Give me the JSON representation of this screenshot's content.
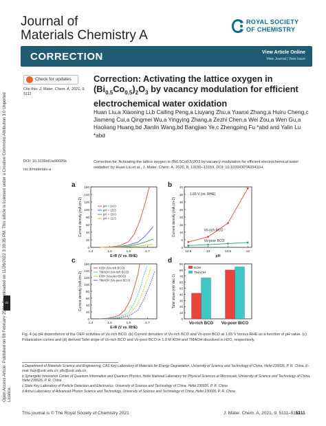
{
  "header": {
    "journal_line1": "Journal of",
    "journal_line2": "Materials Chemistry A",
    "publisher_line1": "ROYAL SOCIETY",
    "publisher_line2": "OF CHEMISTRY"
  },
  "banner": {
    "label": "CORRECTION",
    "view_online": "View Article Online",
    "sub_links": "View Journal | View Issue"
  },
  "side_note": {
    "text": "Open Access Article. Published on 08 February 2021. Downloaded on 11/26/2022 3:39:35 PM. This article is licensed under a Creative Commons Attribution 3.0 Unported Licence.",
    "badge": "cc BY"
  },
  "left_column": {
    "check_updates": "Check for updates",
    "cite_label": "Cite this:",
    "cite_text": "J. Mater. Chem. A, 2021, 9, 5111",
    "doi": "DOI: 10.1039/d1ta90025k",
    "rsc_link": "rsc.li/materials-a"
  },
  "article": {
    "title": "Correction: Activating the lattice oxygen in (Bi0.5Co0.5)2O3 by vacancy modulation for efficient electrochemical water oxidation",
    "title_line1": "Correction: Activating the lattice oxygen in",
    "title_line2_a": "(Bi",
    "title_sub1": "0.5",
    "title_line2_b": "Co",
    "title_sub2": "0.5",
    "title_line2_c": ")",
    "title_sub3": "2",
    "title_line2_d": "O",
    "title_sub4": "3",
    "title_line2_e": " by vacancy modulation for efficient",
    "title_line3": "electrochemical water oxidation",
    "authors": "Huan Liu,a Xiaoning Li,b Cailing Peng,a Liuyang Zhu,a Yuanxi Zhang,a Huiru Cheng,c Jiameng Cui,a Qingmei Wu,a Yingying Zhang,a Zezhi Chen,a Wei Zou,a Wen Gu,a Haoliang Huang,bd Jianlin Wang,bd Bangjiao Ye,c Zhengping Fu *abd and Yalin Lu *abd",
    "abstract": "Correction for 'Activating the lattice oxygen in (Bi0.5Co0.5)2O3 by vacancy modulation for efficient electrochemical water oxidation' by Huan Liu et al., J. Mater. Chem. A, 2020, 8, 13150–13159, DOI: 10.1039/D0TA03411H."
  },
  "figure": {
    "caption": "Fig. 4  (a) pH dependence of the OER activities of Vo-rich BCO. (b) Current densities of Vo-rich BCO and Vo-poor BCO at 1.65 V versus RHE as a function of pH value. (c) Polarization curves and (d) derived Tafel slope of Vo-rich BCO and Vo-poor BCO in 1.0 M KOH and TMAOH dissolved in H2O, respectively.",
    "panel_labels": [
      "a",
      "b",
      "c",
      "d"
    ],
    "colors": {
      "red": "#e8443a",
      "blue": "#3a6fd8",
      "green": "#2aa86a",
      "yellow": "#d9c231",
      "cyan": "#3ec7c7",
      "magenta": "#d94ad1"
    }
  },
  "chart_data": [
    {
      "panel": "a",
      "type": "line",
      "xlabel": "E-iR (V vs. RHE)",
      "ylabel": "Current density (mA cm-2)",
      "xlim": [
        1.4,
        1.75
      ],
      "ylim": [
        0,
        160
      ],
      "xticks": [
        "1.4",
        "1.5",
        "1.6",
        "1.7"
      ],
      "yticks": [
        "0",
        "20",
        "40",
        "60",
        "80",
        "100",
        "120",
        "140",
        "160"
      ],
      "legend": [
        "pH = 14.0",
        "pH = 13.5",
        "pH = 13.0",
        "pH = 12.5"
      ],
      "series": [
        {
          "name": "pH = 14.0",
          "x": [
            1.45,
            1.5,
            1.55,
            1.6,
            1.63,
            1.66,
            1.69,
            1.71
          ],
          "y": [
            0,
            1,
            4,
            15,
            35,
            70,
            120,
            160
          ]
        },
        {
          "name": "pH = 13.5",
          "x": [
            1.45,
            1.5,
            1.55,
            1.6,
            1.65,
            1.68,
            1.71,
            1.73
          ],
          "y": [
            0,
            0.5,
            2,
            6,
            14,
            26,
            42,
            55
          ]
        },
        {
          "name": "pH = 13.0",
          "x": [
            1.45,
            1.5,
            1.55,
            1.6,
            1.65,
            1.7,
            1.73
          ],
          "y": [
            0,
            0.3,
            1,
            3,
            8,
            16,
            22
          ]
        },
        {
          "name": "pH = 12.5",
          "x": [
            1.45,
            1.5,
            1.55,
            1.6,
            1.65,
            1.7,
            1.73
          ],
          "y": [
            0,
            0.2,
            0.5,
            1.5,
            3,
            6,
            8
          ]
        }
      ]
    },
    {
      "panel": "b",
      "type": "line",
      "annotation": "1.65 V (vs. RHE)",
      "xlabel": "pH",
      "ylabel": "Current density (mA cm-2)",
      "xlim": [
        12.4,
        14.1
      ],
      "ylim": [
        0,
        40
      ],
      "xticks": [
        "12.5",
        "13",
        "13.5",
        "14"
      ],
      "yticks": [
        "0",
        "5",
        "10",
        "15",
        "20",
        "25",
        "30",
        "35",
        "40"
      ],
      "series": [
        {
          "name": "Vo-rich BCO",
          "x": [
            12.5,
            13.0,
            13.5,
            14.0
          ],
          "y": [
            3.5,
            7,
            16,
            39
          ]
        },
        {
          "name": "Vo-poor BCO",
          "x": [
            12.5,
            13.0,
            13.5,
            14.0
          ],
          "y": [
            1.2,
            1.8,
            2.5,
            3.2
          ]
        }
      ]
    },
    {
      "panel": "c",
      "type": "line",
      "xlabel": "E-iR (V vs. RHE)",
      "ylabel": "Current density (mA cm-2)",
      "xlim": [
        1.4,
        1.75
      ],
      "ylim": [
        0,
        160
      ],
      "xticks": [
        "1.4",
        "1.5",
        "1.6",
        "1.7"
      ],
      "yticks": [
        "0",
        "20",
        "40",
        "60",
        "80",
        "100",
        "120",
        "140",
        "160"
      ],
      "legend": [
        "KOH (Vo-rich BCO)",
        "TMAOH (Vo-rich BCO)",
        "KOH (Vo-poor BCO)",
        "TMAOH (Vo-poor BCO)"
      ],
      "series": [
        {
          "name": "KOH (Vo-rich BCO)",
          "x": [
            1.45,
            1.5,
            1.55,
            1.58,
            1.61,
            1.63,
            1.65,
            1.66
          ],
          "y": [
            0,
            2,
            10,
            25,
            55,
            90,
            130,
            160
          ]
        },
        {
          "name": "TMAOH (Vo-rich BCO)",
          "x": [
            1.45,
            1.5,
            1.55,
            1.6,
            1.63,
            1.66,
            1.68,
            1.7
          ],
          "y": [
            0,
            1,
            5,
            18,
            45,
            85,
            125,
            155
          ]
        },
        {
          "name": "KOH (Vo-poor BCO)",
          "x": [
            1.45,
            1.5,
            1.55,
            1.6,
            1.64,
            1.67,
            1.7,
            1.72
          ],
          "y": [
            0,
            0.5,
            3,
            12,
            35,
            70,
            115,
            150
          ]
        },
        {
          "name": "TMAOH (Vo-poor BCO)",
          "x": [
            1.45,
            1.5,
            1.55,
            1.6,
            1.65,
            1.68,
            1.71,
            1.74
          ],
          "y": [
            0,
            0.3,
            2,
            8,
            25,
            55,
            95,
            140
          ]
        }
      ]
    },
    {
      "panel": "d",
      "type": "bar",
      "ylabel": "Tafel slope (mV dec-1)",
      "ylim": [
        0,
        90
      ],
      "yticks": [
        "0",
        "10",
        "20",
        "30",
        "40",
        "50",
        "60",
        "70",
        "80",
        "90"
      ],
      "categories": [
        "Vo-rich BCO",
        "Vo-poor BiCO"
      ],
      "legend": [
        "KOH",
        "TMAOH"
      ],
      "series": [
        {
          "name": "KOH",
          "values": [
            42,
            80
          ]
        },
        {
          "name": "TMAOH",
          "values": [
            67,
            85
          ]
        }
      ]
    }
  ],
  "footnotes": [
    "a Department of Materials Science and Engineering, CAS Key Laboratory of Materials for Energy Degradation, University of Science and Technology of China, Hefei 230026, P. R. China. E-mail: fuzp@ustc.edu.cn; yllu@ustc.edu.cn",
    "b Synergetic Innovation Center of Quantum Information and Quantum Physics, Hefei National Laboratory for Physical Sciences at Microscale, University of Science and Technology of China, Hefei 230026, P. R. China",
    "c State Key Laboratory of Particle Detection and Electronics, University of Science and Technology of China, Hefei 230026, P. R. China",
    "d Anhui Laboratory of Advanced Photon Science and Technology, University of Science and Technology of China, Hefei 230026, P. R. China"
  ],
  "footer": {
    "left": "This journal is © The Royal Society of Chemistry 2021",
    "right": "J. Mater. Chem. A, 2021, 9, 5111–5112",
    "page": "5111"
  }
}
